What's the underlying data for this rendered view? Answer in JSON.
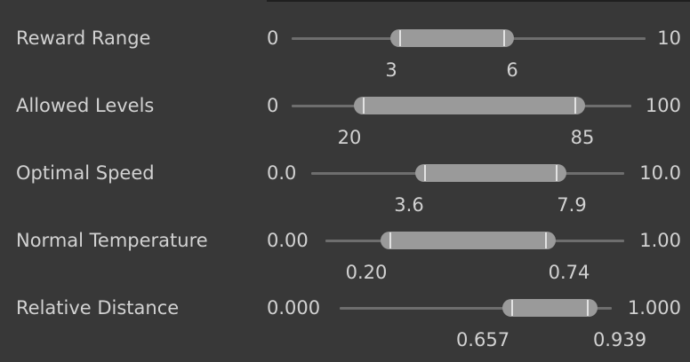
{
  "sliders": [
    {
      "label": "Reward Range",
      "range_min": "0",
      "range_max": "10",
      "low": "3",
      "high": "6",
      "low_fraction": 0.3,
      "high_fraction": 0.6
    },
    {
      "label": "Allowed Levels",
      "range_min": "0",
      "range_max": "100",
      "low": "20",
      "high": "85",
      "low_fraction": 0.2,
      "high_fraction": 0.85
    },
    {
      "label": "Optimal Speed",
      "range_min": "0.0",
      "range_max": "10.0",
      "low": "3.6",
      "high": "7.9",
      "low_fraction": 0.36,
      "high_fraction": 0.79
    },
    {
      "label": "Normal Temperature",
      "range_min": "0.00",
      "range_max": "1.00",
      "low": "0.20",
      "high": "0.74",
      "low_fraction": 0.2,
      "high_fraction": 0.74
    },
    {
      "label": "Relative Distance",
      "range_min": "0.000",
      "range_max": "1.000",
      "low": "0.657",
      "high": "0.939",
      "low_fraction": 0.657,
      "high_fraction": 0.939
    }
  ]
}
